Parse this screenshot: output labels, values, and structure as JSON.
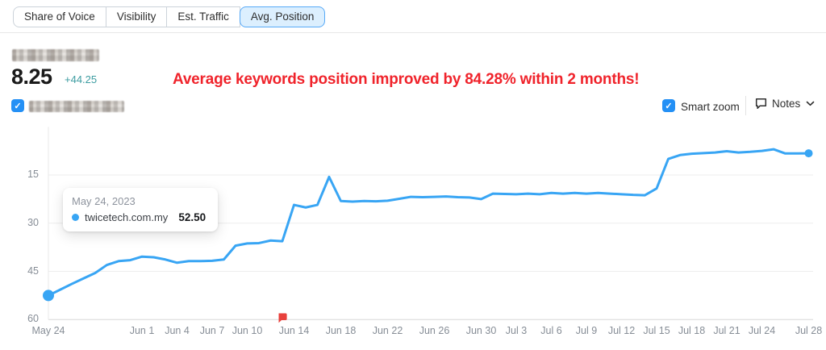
{
  "tabs": {
    "items": [
      {
        "label": "Share of Voice",
        "active": false
      },
      {
        "label": "Visibility",
        "active": false
      },
      {
        "label": "Est. Traffic",
        "active": false
      },
      {
        "label": "Avg. Position",
        "active": true
      }
    ]
  },
  "metric": {
    "value": "8.25",
    "change": "+44.25",
    "change_color": "#3d9ca1",
    "label_redacted": true
  },
  "annotation": {
    "text": "Average keywords position improved by 84.28% within 2 months!",
    "color": "#f0232b"
  },
  "legend": {
    "checkbox_checked": true,
    "check_glyph": "✓",
    "label_redacted": true
  },
  "controls": {
    "smart_zoom": {
      "label": "Smart zoom",
      "checked": true,
      "check_glyph": "✓"
    },
    "notes": {
      "label": "Notes",
      "icon": "speech-bubble-icon",
      "chevron": "chevron-down-icon"
    }
  },
  "tooltip": {
    "date": "May 24, 2023",
    "series": "twicetech.com.my",
    "value": "52.50"
  },
  "chart_data": {
    "type": "line",
    "title": "",
    "xlabel": "",
    "ylabel": "",
    "y_axis": {
      "ticks": [
        15,
        30,
        45,
        60
      ],
      "range": [
        0,
        60
      ],
      "inverted": true,
      "grid": true
    },
    "x_axis": {
      "range_days": 65,
      "ticks": [
        {
          "label": "May 24",
          "day": 0
        },
        {
          "label": "Jun 1",
          "day": 8
        },
        {
          "label": "Jun 4",
          "day": 11
        },
        {
          "label": "Jun 7",
          "day": 14
        },
        {
          "label": "Jun 10",
          "day": 17
        },
        {
          "label": "Jun 14",
          "day": 21
        },
        {
          "label": "Jun 18",
          "day": 25
        },
        {
          "label": "Jun 22",
          "day": 29
        },
        {
          "label": "Jun 26",
          "day": 33
        },
        {
          "label": "Jun 30",
          "day": 37
        },
        {
          "label": "Jul 3",
          "day": 40
        },
        {
          "label": "Jul 6",
          "day": 43
        },
        {
          "label": "Jul 9",
          "day": 46
        },
        {
          "label": "Jul 12",
          "day": 49
        },
        {
          "label": "Jul 15",
          "day": 52
        },
        {
          "label": "Jul 18",
          "day": 55
        },
        {
          "label": "Jul 21",
          "day": 58
        },
        {
          "label": "Jul 24",
          "day": 61
        },
        {
          "label": "Jul 28",
          "day": 65
        }
      ]
    },
    "series": [
      {
        "name": "twicetech.com.my",
        "color": "#38a5f4",
        "values": [
          52.5,
          50.7,
          48.9,
          47.2,
          45.5,
          43.0,
          41.8,
          41.5,
          40.4,
          40.6,
          41.3,
          42.3,
          41.8,
          41.8,
          41.7,
          41.3,
          37.0,
          36.3,
          36.2,
          35.4,
          35.6,
          24.3,
          25.1,
          24.3,
          15.6,
          23.1,
          23.3,
          23.1,
          23.2,
          23.0,
          22.4,
          21.8,
          21.9,
          21.8,
          21.7,
          21.9,
          22.0,
          22.5,
          20.8,
          20.9,
          21.0,
          20.8,
          21.0,
          20.6,
          20.8,
          20.6,
          20.8,
          20.6,
          20.8,
          21.0,
          21.2,
          21.3,
          19.2,
          10.0,
          8.8,
          8.4,
          8.2,
          8.0,
          7.6,
          8.0,
          7.8,
          7.5,
          7.0,
          8.3,
          8.3,
          8.25
        ]
      }
    ],
    "start_point": {
      "day": 0,
      "value": 52.5
    },
    "end_point": {
      "day": 65,
      "value": 8.25
    },
    "note_flag_day": 20,
    "legend_position": "none"
  }
}
